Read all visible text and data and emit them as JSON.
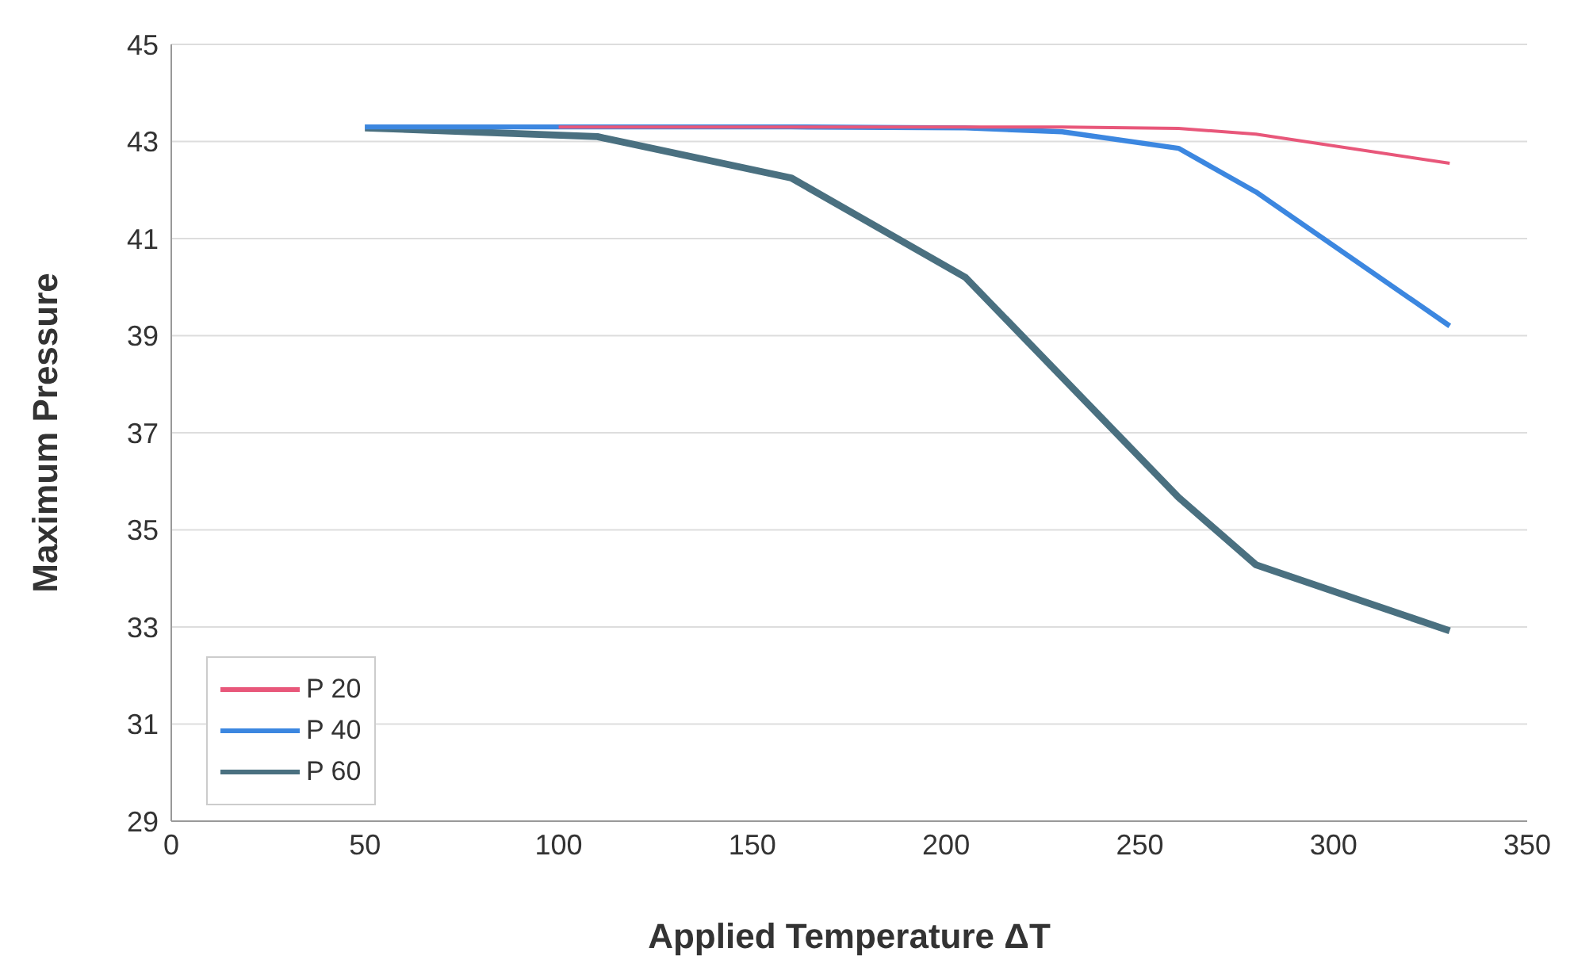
{
  "chart_data": {
    "type": "line",
    "xlabel": "Applied Temperature ΔT",
    "ylabel": "Maximum Pressure",
    "xlim": [
      0,
      350
    ],
    "xticks": [
      0,
      50,
      100,
      150,
      200,
      250,
      300,
      350
    ],
    "ylim": [
      29,
      45
    ],
    "yticks": [
      29,
      31,
      33,
      35,
      37,
      39,
      41,
      43,
      45
    ],
    "grid": "y",
    "legend": "bottom left",
    "marker": "none",
    "line_style": "solid",
    "series": [
      {
        "name": "P 20",
        "color": "#e8577a",
        "x": [
          100,
          160,
          205,
          230,
          260,
          280,
          330
        ],
        "values": [
          43.3,
          43.3,
          43.3,
          43.3,
          43.27,
          43.15,
          42.55
        ]
      },
      {
        "name": "P 40",
        "color": "#3c87e0",
        "x": [
          50,
          100,
          160,
          205,
          230,
          260,
          280,
          330
        ],
        "values": [
          43.3,
          43.3,
          43.3,
          43.28,
          43.2,
          42.86,
          41.96,
          39.2
        ]
      },
      {
        "name": "P 60",
        "color": "#4a7080",
        "x": [
          50,
          110,
          160,
          205,
          260,
          280,
          330
        ],
        "values": [
          43.28,
          43.1,
          42.25,
          40.2,
          35.67,
          34.28,
          32.92
        ]
      }
    ]
  }
}
